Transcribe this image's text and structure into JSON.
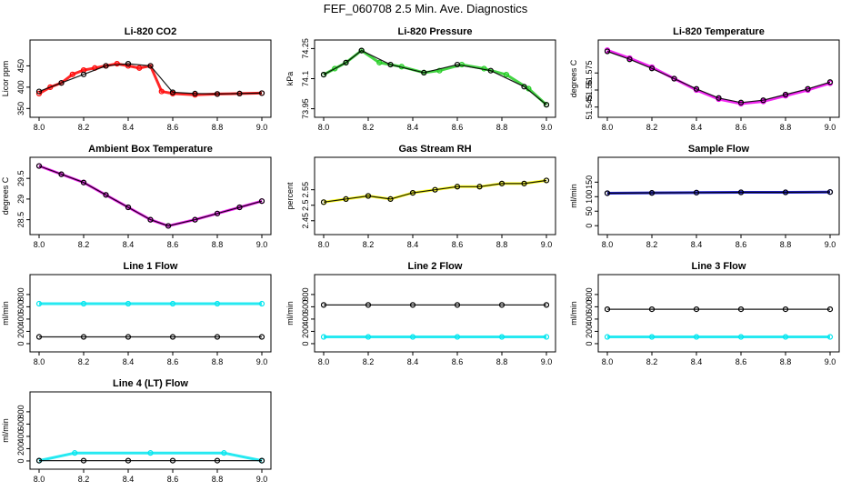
{
  "figure_title": "FEF_060708  2.5 Min. Ave. Diagnostics",
  "chart_data": [
    {
      "type": "scatter",
      "title": "Li-820 CO2",
      "ylabel": "Licor ppm",
      "xlim": [
        8.0,
        9.0
      ],
      "ylim": [
        340,
        500
      ],
      "yticks": [
        350,
        400,
        450
      ],
      "xticks": [
        "8.0",
        "8.2",
        "8.4",
        "8.6",
        "8.8",
        "9.0"
      ],
      "series": [
        {
          "name": "raw",
          "color": "#ff0000",
          "x": [
            8.0,
            8.05,
            8.1,
            8.15,
            8.2,
            8.25,
            8.3,
            8.35,
            8.4,
            8.45,
            8.5,
            8.55,
            8.6,
            8.7,
            8.8,
            8.9,
            9.0
          ],
          "values": [
            385,
            400,
            410,
            430,
            440,
            445,
            450,
            455,
            450,
            445,
            450,
            390,
            385,
            382,
            384,
            385,
            386
          ]
        },
        {
          "name": "average",
          "color": "#000000",
          "x": [
            8.0,
            8.1,
            8.2,
            8.3,
            8.4,
            8.5,
            8.6,
            8.7,
            8.8,
            8.9,
            9.0
          ],
          "values": [
            390,
            410,
            430,
            450,
            455,
            450,
            388,
            385,
            384,
            385,
            386
          ]
        }
      ]
    },
    {
      "type": "scatter",
      "title": "Li-820 Pressure",
      "ylabel": "kPa",
      "xlim": [
        8.0,
        9.0
      ],
      "ylim": [
        73.93,
        74.27
      ],
      "yticks": [
        73.95,
        74.1,
        74.25
      ],
      "xticks": [
        "8.0",
        "8.2",
        "8.4",
        "8.6",
        "8.8",
        "9.0"
      ],
      "series": [
        {
          "name": "raw",
          "color": "#22cc22",
          "x": [
            8.0,
            8.05,
            8.1,
            8.17,
            8.25,
            8.35,
            8.45,
            8.52,
            8.62,
            8.72,
            8.82,
            8.92,
            9.0
          ],
          "values": [
            74.12,
            74.15,
            74.18,
            74.24,
            74.18,
            74.16,
            74.13,
            74.14,
            74.17,
            74.15,
            74.12,
            74.05,
            73.97
          ]
        },
        {
          "name": "average",
          "color": "#000000",
          "x": [
            8.0,
            8.1,
            8.17,
            8.3,
            8.45,
            8.6,
            8.75,
            8.9,
            9.0
          ],
          "values": [
            74.12,
            74.18,
            74.24,
            74.17,
            74.13,
            74.17,
            74.14,
            74.06,
            73.97
          ]
        }
      ]
    },
    {
      "type": "scatter",
      "title": "Li-820 Temperature",
      "ylabel": "degrees C",
      "xlim": [
        8.0,
        9.0
      ],
      "ylim": [
        51.54,
        51.6
      ],
      "yticks": [
        51.545,
        51.56,
        51.575
      ],
      "xticks": [
        "8.0",
        "8.2",
        "8.4",
        "8.6",
        "8.8",
        "9.0"
      ],
      "series": [
        {
          "name": "raw",
          "color": "#ee00ee",
          "x": [
            8.0,
            8.1,
            8.2,
            8.3,
            8.4,
            8.5,
            8.6,
            8.7,
            8.8,
            8.9,
            9.0
          ],
          "values": [
            51.595,
            51.588,
            51.58,
            51.57,
            51.56,
            51.552,
            51.548,
            51.55,
            51.555,
            51.56,
            51.566
          ]
        },
        {
          "name": "average",
          "color": "#000000",
          "x": [
            8.0,
            8.1,
            8.2,
            8.3,
            8.4,
            8.5,
            8.6,
            8.7,
            8.8,
            8.9,
            9.0
          ],
          "values": [
            51.594,
            51.587,
            51.579,
            51.57,
            51.561,
            51.553,
            51.549,
            51.551,
            51.556,
            51.561,
            51.567
          ]
        }
      ]
    },
    {
      "type": "scatter",
      "title": "Ambient Box Temperature",
      "ylabel": "degrees C",
      "xlim": [
        8.0,
        9.0
      ],
      "ylim": [
        28.25,
        29.9
      ],
      "yticks": [
        28.5,
        29.0,
        29.5
      ],
      "xticks": [
        "8.0",
        "8.2",
        "8.4",
        "8.6",
        "8.8",
        "9.0"
      ],
      "series": [
        {
          "name": "raw",
          "color": "#ee00ee",
          "x": [
            8.0,
            8.1,
            8.2,
            8.3,
            8.4,
            8.5,
            8.58,
            8.7,
            8.8,
            8.9,
            9.0
          ],
          "values": [
            29.8,
            29.6,
            29.4,
            29.1,
            28.8,
            28.5,
            28.35,
            28.5,
            28.65,
            28.8,
            28.95
          ]
        },
        {
          "name": "average",
          "color": "#000000",
          "x": [
            8.0,
            8.1,
            8.2,
            8.3,
            8.4,
            8.5,
            8.58,
            8.7,
            8.8,
            8.9,
            9.0
          ],
          "values": [
            29.8,
            29.6,
            29.4,
            29.1,
            28.8,
            28.5,
            28.35,
            28.5,
            28.65,
            28.8,
            28.95
          ]
        }
      ]
    },
    {
      "type": "scatter",
      "title": "Gas Stream RH",
      "ylabel": "percent",
      "xlim": [
        8.0,
        9.0
      ],
      "ylim": [
        2.42,
        2.64
      ],
      "yticks": [
        2.45,
        2.5,
        2.55
      ],
      "xticks": [
        "8.0",
        "8.2",
        "8.4",
        "8.6",
        "8.8",
        "9.0"
      ],
      "series": [
        {
          "name": "raw",
          "color": "#ffff00",
          "x": [
            8.0,
            8.1,
            8.2,
            8.3,
            8.4,
            8.5,
            8.6,
            8.7,
            8.8,
            8.9,
            9.0
          ],
          "values": [
            2.51,
            2.52,
            2.53,
            2.52,
            2.54,
            2.55,
            2.56,
            2.56,
            2.57,
            2.57,
            2.58
          ]
        },
        {
          "name": "average",
          "color": "#000000",
          "x": [
            8.0,
            8.1,
            8.2,
            8.3,
            8.4,
            8.5,
            8.6,
            8.7,
            8.8,
            8.9,
            9.0
          ],
          "values": [
            2.51,
            2.52,
            2.53,
            2.52,
            2.54,
            2.55,
            2.56,
            2.56,
            2.57,
            2.57,
            2.58
          ]
        }
      ]
    },
    {
      "type": "scatter",
      "title": "Sample Flow",
      "ylabel": "ml/min",
      "xlim": [
        8.0,
        9.0
      ],
      "ylim": [
        -15,
        220
      ],
      "yticks": [
        0,
        50,
        100,
        150
      ],
      "xticks": [
        "8.0",
        "8.2",
        "8.4",
        "8.6",
        "8.8",
        "9.0"
      ],
      "series": [
        {
          "name": "raw",
          "color": "#0000cc",
          "x": [
            8.0,
            8.2,
            8.4,
            8.6,
            8.8,
            9.0
          ],
          "values": [
            112,
            113,
            114,
            115,
            115,
            116
          ]
        },
        {
          "name": "average",
          "color": "#000000",
          "x": [
            8.0,
            8.2,
            8.4,
            8.6,
            8.8,
            9.0
          ],
          "values": [
            112,
            113,
            114,
            115,
            115,
            116
          ]
        }
      ]
    },
    {
      "type": "scatter",
      "title": "Line 1 Flow",
      "ylabel": "ml/min",
      "xlim": [
        8.0,
        9.0
      ],
      "ylim": [
        -60,
        1050
      ],
      "yticks": [
        0,
        200,
        400,
        600,
        800
      ],
      "xticks": [
        "8.0",
        "8.2",
        "8.4",
        "8.6",
        "8.8",
        "9.0"
      ],
      "series": [
        {
          "name": "raw",
          "color": "#00e5ee",
          "x": [
            8.0,
            8.2,
            8.4,
            8.6,
            8.8,
            9.0
          ],
          "values": [
            650,
            650,
            650,
            650,
            650,
            650
          ]
        },
        {
          "name": "average",
          "color": "#000000",
          "x": [
            8.0,
            8.2,
            8.4,
            8.6,
            8.8,
            9.0
          ],
          "values": [
            110,
            110,
            110,
            110,
            110,
            110
          ]
        }
      ]
    },
    {
      "type": "scatter",
      "title": "Line 2 Flow",
      "ylabel": "ml/min",
      "xlim": [
        8.0,
        9.0
      ],
      "ylim": [
        -60,
        1050
      ],
      "yticks": [
        0,
        200,
        400,
        600,
        800
      ],
      "xticks": [
        "8.0",
        "8.2",
        "8.4",
        "8.6",
        "8.8",
        "9.0"
      ],
      "series": [
        {
          "name": "raw",
          "color": "#00e5ee",
          "x": [
            8.0,
            8.2,
            8.4,
            8.6,
            8.8,
            9.0
          ],
          "values": [
            110,
            110,
            110,
            110,
            110,
            110
          ]
        },
        {
          "name": "average",
          "color": "#000000",
          "x": [
            8.0,
            8.2,
            8.4,
            8.6,
            8.8,
            9.0
          ],
          "values": [
            630,
            630,
            630,
            630,
            630,
            630
          ]
        }
      ]
    },
    {
      "type": "scatter",
      "title": "Line 3 Flow",
      "ylabel": "ml/min",
      "xlim": [
        8.0,
        9.0
      ],
      "ylim": [
        -60,
        1050
      ],
      "yticks": [
        0,
        200,
        400,
        600,
        800
      ],
      "xticks": [
        "8.0",
        "8.2",
        "8.4",
        "8.6",
        "8.8",
        "9.0"
      ],
      "series": [
        {
          "name": "raw",
          "color": "#00e5ee",
          "x": [
            8.0,
            8.2,
            8.4,
            8.6,
            8.8,
            9.0
          ],
          "values": [
            110,
            110,
            110,
            110,
            110,
            110
          ]
        },
        {
          "name": "average",
          "color": "#000000",
          "x": [
            8.0,
            8.2,
            8.4,
            8.6,
            8.8,
            9.0
          ],
          "values": [
            560,
            560,
            560,
            560,
            560,
            560
          ]
        }
      ]
    },
    {
      "type": "scatter",
      "title": "Line 4 (LT) Flow",
      "ylabel": "ml/min",
      "xlim": [
        8.0,
        9.0
      ],
      "ylim": [
        -60,
        1050
      ],
      "yticks": [
        0,
        200,
        400,
        600,
        800
      ],
      "xticks": [
        "8.0",
        "8.2",
        "8.4",
        "8.6",
        "8.8",
        "9.0"
      ],
      "series": [
        {
          "name": "raw",
          "color": "#00e5ee",
          "x": [
            8.0,
            8.16,
            8.5,
            8.83,
            9.0
          ],
          "values": [
            5,
            130,
            130,
            130,
            5
          ]
        },
        {
          "name": "average",
          "color": "#000000",
          "x": [
            8.0,
            8.2,
            8.4,
            8.6,
            8.8,
            9.0
          ],
          "values": [
            5,
            5,
            5,
            5,
            5,
            5
          ]
        }
      ]
    }
  ]
}
